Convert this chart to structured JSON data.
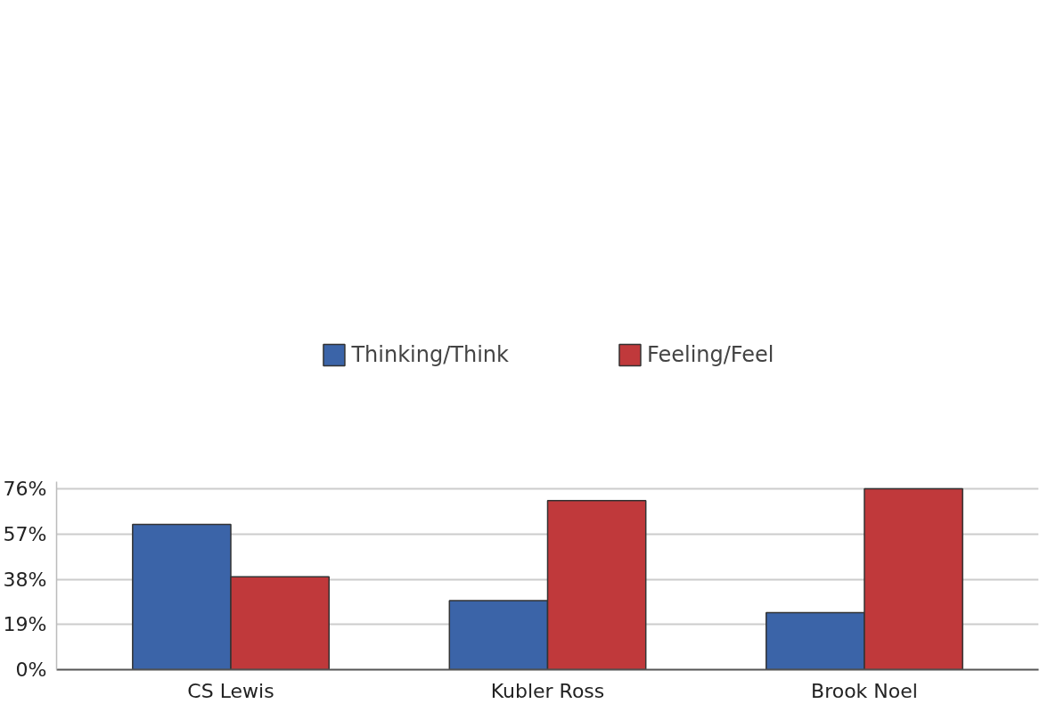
{
  "chart_data": {
    "type": "bar",
    "categories": [
      "CS Lewis",
      "Kubler Ross",
      "Brook Noel"
    ],
    "series": [
      {
        "name": "Thinking/Think",
        "color": "#3b64a8",
        "values": [
          61,
          29,
          24
        ]
      },
      {
        "name": "Feeling/Feel",
        "color": "#c0393b",
        "values": [
          39,
          71,
          76
        ]
      }
    ],
    "ylim": [
      0,
      79
    ],
    "yticks": [
      {
        "value": 0,
        "label": "0%"
      },
      {
        "value": 19,
        "label": "19%"
      },
      {
        "value": 38,
        "label": "38%"
      },
      {
        "value": 57,
        "label": "57%"
      },
      {
        "value": 76,
        "label": "76%"
      }
    ],
    "grid": "y",
    "legend": "top"
  }
}
